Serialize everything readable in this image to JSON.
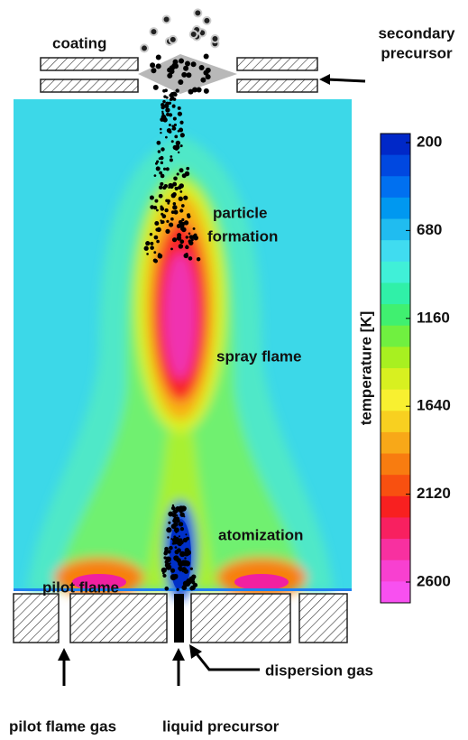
{
  "labels": {
    "coating": "coating",
    "secondary_precursor": [
      "secondary",
      "precursor"
    ],
    "particle_formation": [
      "particle",
      "formation"
    ],
    "spray_flame": "spray flame",
    "atomization": "atomization",
    "pilot_flame": "pilot flame",
    "dispersion_gas": "dispersion gas",
    "pilot_flame_gas": "pilot flame gas",
    "liquid_precursor": "liquid precursor"
  },
  "colorbar": {
    "title": "temperature [K]",
    "ticks": [
      200,
      680,
      1160,
      1640,
      2120,
      2600
    ]
  }
}
